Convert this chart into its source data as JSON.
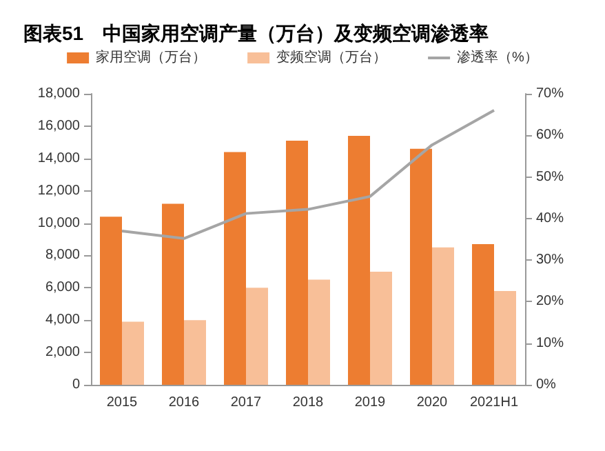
{
  "chart_data": {
    "type": "bar",
    "title": "图表51　中国家用空调产量（万台）及变频空调渗透率",
    "categories": [
      "2015",
      "2016",
      "2017",
      "2018",
      "2019",
      "2020",
      "2021H1"
    ],
    "series": [
      {
        "name": "家用空调（万台）",
        "color": "#ed7d31",
        "values": [
          10400,
          11200,
          14400,
          15100,
          15400,
          14600,
          8700
        ]
      },
      {
        "name": "变频空调（万台）",
        "color": "#f8bf98",
        "values": [
          3900,
          4000,
          6000,
          6500,
          7000,
          8500,
          5800
        ]
      },
      {
        "name": "渗透率（%）",
        "type": "line",
        "axis": "y2",
        "color": "#a5a5a5",
        "marker": "none",
        "values": [
          37.0,
          35.2,
          41.2,
          42.2,
          45.3,
          57.7,
          66.0
        ]
      }
    ],
    "ylim": [
      0,
      18000
    ],
    "yticks": [
      0,
      {
        "value": 2000,
        "label": "2,000"
      },
      {
        "value": 4000,
        "label": "4,000"
      },
      {
        "value": 6000,
        "label": "6,000"
      },
      {
        "value": 8000,
        "label": "8,000"
      },
      {
        "value": 10000,
        "label": "10,000"
      },
      {
        "value": 12000,
        "label": "12,000"
      },
      {
        "value": 14000,
        "label": "14,000"
      },
      {
        "value": 16000,
        "label": "16,000"
      },
      {
        "value": 18000,
        "label": "18,000"
      }
    ],
    "y2lim": [
      0,
      70
    ],
    "y2ticks": [
      {
        "value": 0,
        "label": "0%"
      },
      {
        "value": 10,
        "label": "10%"
      },
      {
        "value": 20,
        "label": "20%"
      },
      {
        "value": 30,
        "label": "30%"
      },
      {
        "value": 40,
        "label": "40%"
      },
      {
        "value": 50,
        "label": "50%"
      },
      {
        "value": 60,
        "label": "60%"
      },
      {
        "value": 70,
        "label": "70%"
      }
    ],
    "legend": "top",
    "grid": false
  }
}
